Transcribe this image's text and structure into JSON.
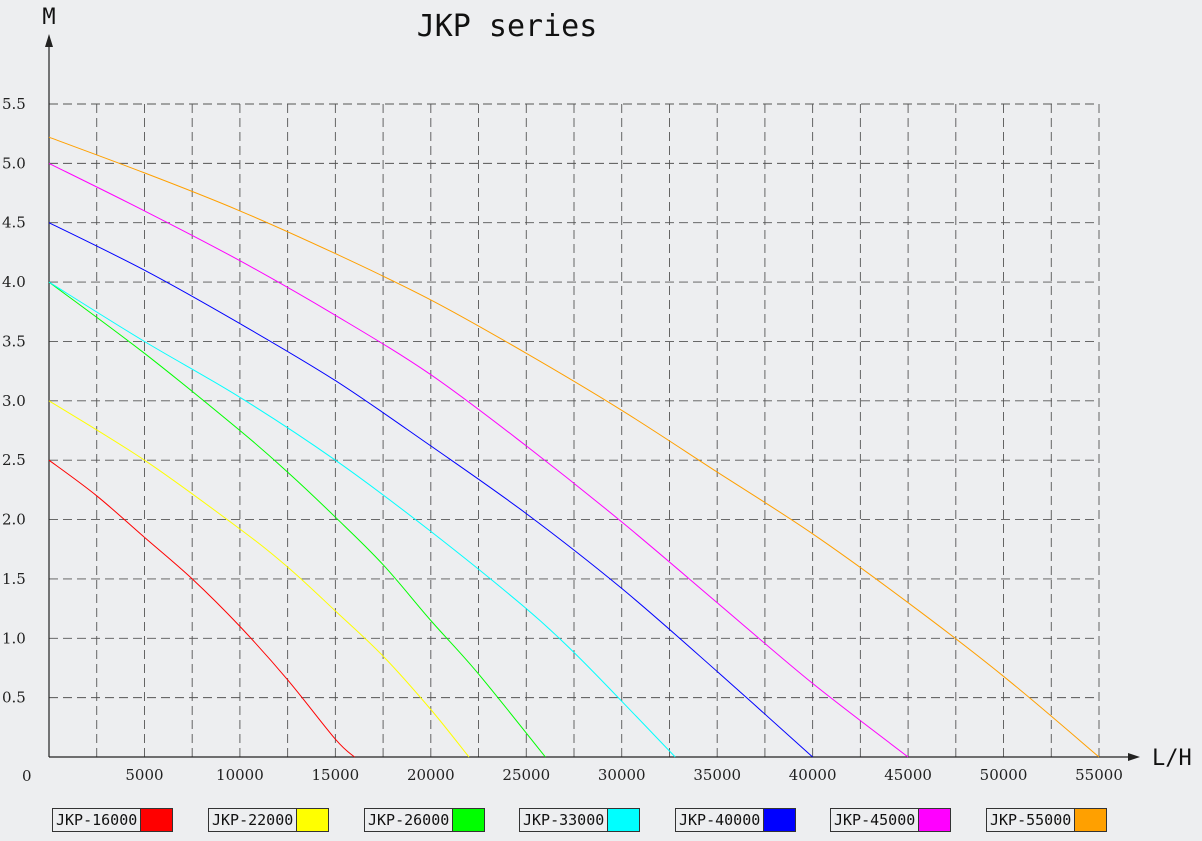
{
  "chart_data": {
    "type": "line",
    "title": "JKP series",
    "ylabel": "M",
    "xlabel": "L/H",
    "origin_label": "0",
    "xlim": [
      0,
      55000
    ],
    "ylim": [
      0,
      5.5
    ],
    "x_ticks": [
      5000,
      10000,
      15000,
      20000,
      25000,
      30000,
      35000,
      40000,
      45000,
      50000,
      55000
    ],
    "x_tick_labels": [
      "5000",
      "10000",
      "15000",
      "20000",
      "25000",
      "30000",
      "35000",
      "40000",
      "45000",
      "50000",
      "55000"
    ],
    "y_ticks": [
      0.5,
      1.0,
      1.5,
      2.0,
      2.5,
      3.0,
      3.5,
      4.0,
      4.5,
      5.0,
      5.5
    ],
    "y_tick_labels": [
      "0.5",
      "1.0",
      "1.5",
      "2.0",
      "2.5",
      "3.0",
      "3.5",
      "4.0",
      "4.5",
      "5.0",
      "5.5"
    ],
    "grid": true,
    "grid_x_step": 2500,
    "grid_y_step": 0.5,
    "legend_position": "bottom",
    "series": [
      {
        "name": "JKP-16000",
        "color": "#ff0000",
        "points": [
          [
            0,
            2.5
          ],
          [
            2500,
            2.2
          ],
          [
            5000,
            1.85
          ],
          [
            7500,
            1.5
          ],
          [
            10000,
            1.1
          ],
          [
            12500,
            0.65
          ],
          [
            15000,
            0.15
          ],
          [
            16000,
            0
          ]
        ]
      },
      {
        "name": "JKP-22000",
        "color": "#ffff00",
        "points": [
          [
            0,
            3.0
          ],
          [
            5000,
            2.5
          ],
          [
            10000,
            1.92
          ],
          [
            12500,
            1.6
          ],
          [
            15000,
            1.23
          ],
          [
            17500,
            0.85
          ],
          [
            20000,
            0.4
          ],
          [
            22000,
            0
          ]
        ]
      },
      {
        "name": "JKP-26000",
        "color": "#00ff00",
        "points": [
          [
            0,
            4.0
          ],
          [
            5000,
            3.4
          ],
          [
            10000,
            2.75
          ],
          [
            12500,
            2.4
          ],
          [
            15000,
            2.02
          ],
          [
            17500,
            1.62
          ],
          [
            20000,
            1.15
          ],
          [
            22500,
            0.7
          ],
          [
            26000,
            0
          ]
        ]
      },
      {
        "name": "JKP-33000",
        "color": "#00ffff",
        "points": [
          [
            0,
            4.0
          ],
          [
            5000,
            3.5
          ],
          [
            10000,
            3.03
          ],
          [
            15000,
            2.5
          ],
          [
            20000,
            1.9
          ],
          [
            25000,
            1.25
          ],
          [
            27500,
            0.88
          ],
          [
            30000,
            0.47
          ],
          [
            32800,
            0
          ]
        ]
      },
      {
        "name": "JKP-40000",
        "color": "#0000ff",
        "points": [
          [
            0,
            4.5
          ],
          [
            5000,
            4.1
          ],
          [
            10000,
            3.65
          ],
          [
            15000,
            3.17
          ],
          [
            20000,
            2.62
          ],
          [
            25000,
            2.05
          ],
          [
            30000,
            1.42
          ],
          [
            35000,
            0.72
          ],
          [
            40000,
            0
          ]
        ]
      },
      {
        "name": "JKP-45000",
        "color": "#ff00ff",
        "points": [
          [
            0,
            5.0
          ],
          [
            5000,
            4.6
          ],
          [
            10000,
            4.18
          ],
          [
            15000,
            3.72
          ],
          [
            20000,
            3.22
          ],
          [
            25000,
            2.62
          ],
          [
            30000,
            1.98
          ],
          [
            35000,
            1.3
          ],
          [
            40000,
            0.62
          ],
          [
            45000,
            0
          ]
        ]
      },
      {
        "name": "JKP-55000",
        "color": "#ffa000",
        "points": [
          [
            0,
            5.22
          ],
          [
            5000,
            4.92
          ],
          [
            10000,
            4.6
          ],
          [
            15000,
            4.24
          ],
          [
            20000,
            3.85
          ],
          [
            25000,
            3.4
          ],
          [
            30000,
            2.92
          ],
          [
            35000,
            2.4
          ],
          [
            40000,
            1.88
          ],
          [
            45000,
            1.3
          ],
          [
            50000,
            0.68
          ],
          [
            55000,
            0
          ]
        ]
      }
    ]
  }
}
